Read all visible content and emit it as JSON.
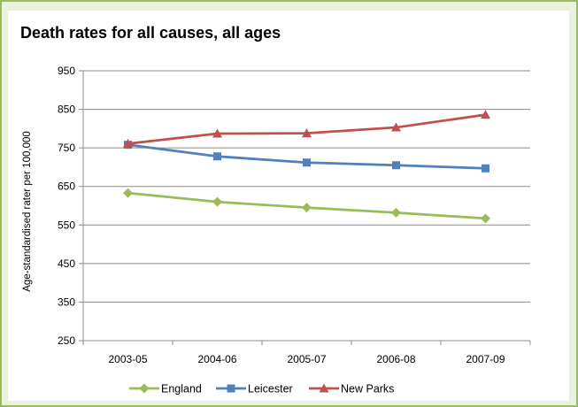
{
  "chart_data": {
    "type": "line",
    "title": "Death rates for all causes, all ages",
    "xlabel": "",
    "ylabel": "Age-standardised rater per 100,000",
    "categories": [
      "2003-05",
      "2004-06",
      "2005-07",
      "2006-08",
      "2007-09"
    ],
    "ylim": [
      250,
      950
    ],
    "yticks": [
      250,
      350,
      450,
      550,
      650,
      750,
      850,
      950
    ],
    "grid": "horizontal",
    "legend_position": "bottom",
    "series": [
      {
        "name": "England",
        "values": [
          633,
          610,
          595,
          582,
          567
        ],
        "color": "#9bbb59",
        "marker": "diamond"
      },
      {
        "name": "Leicester",
        "values": [
          758,
          728,
          712,
          705,
          697
        ],
        "color": "#4f81bd",
        "marker": "square"
      },
      {
        "name": "New Parks",
        "values": [
          761,
          787,
          788,
          803,
          836
        ],
        "color": "#c0504d",
        "marker": "triangle"
      }
    ]
  }
}
